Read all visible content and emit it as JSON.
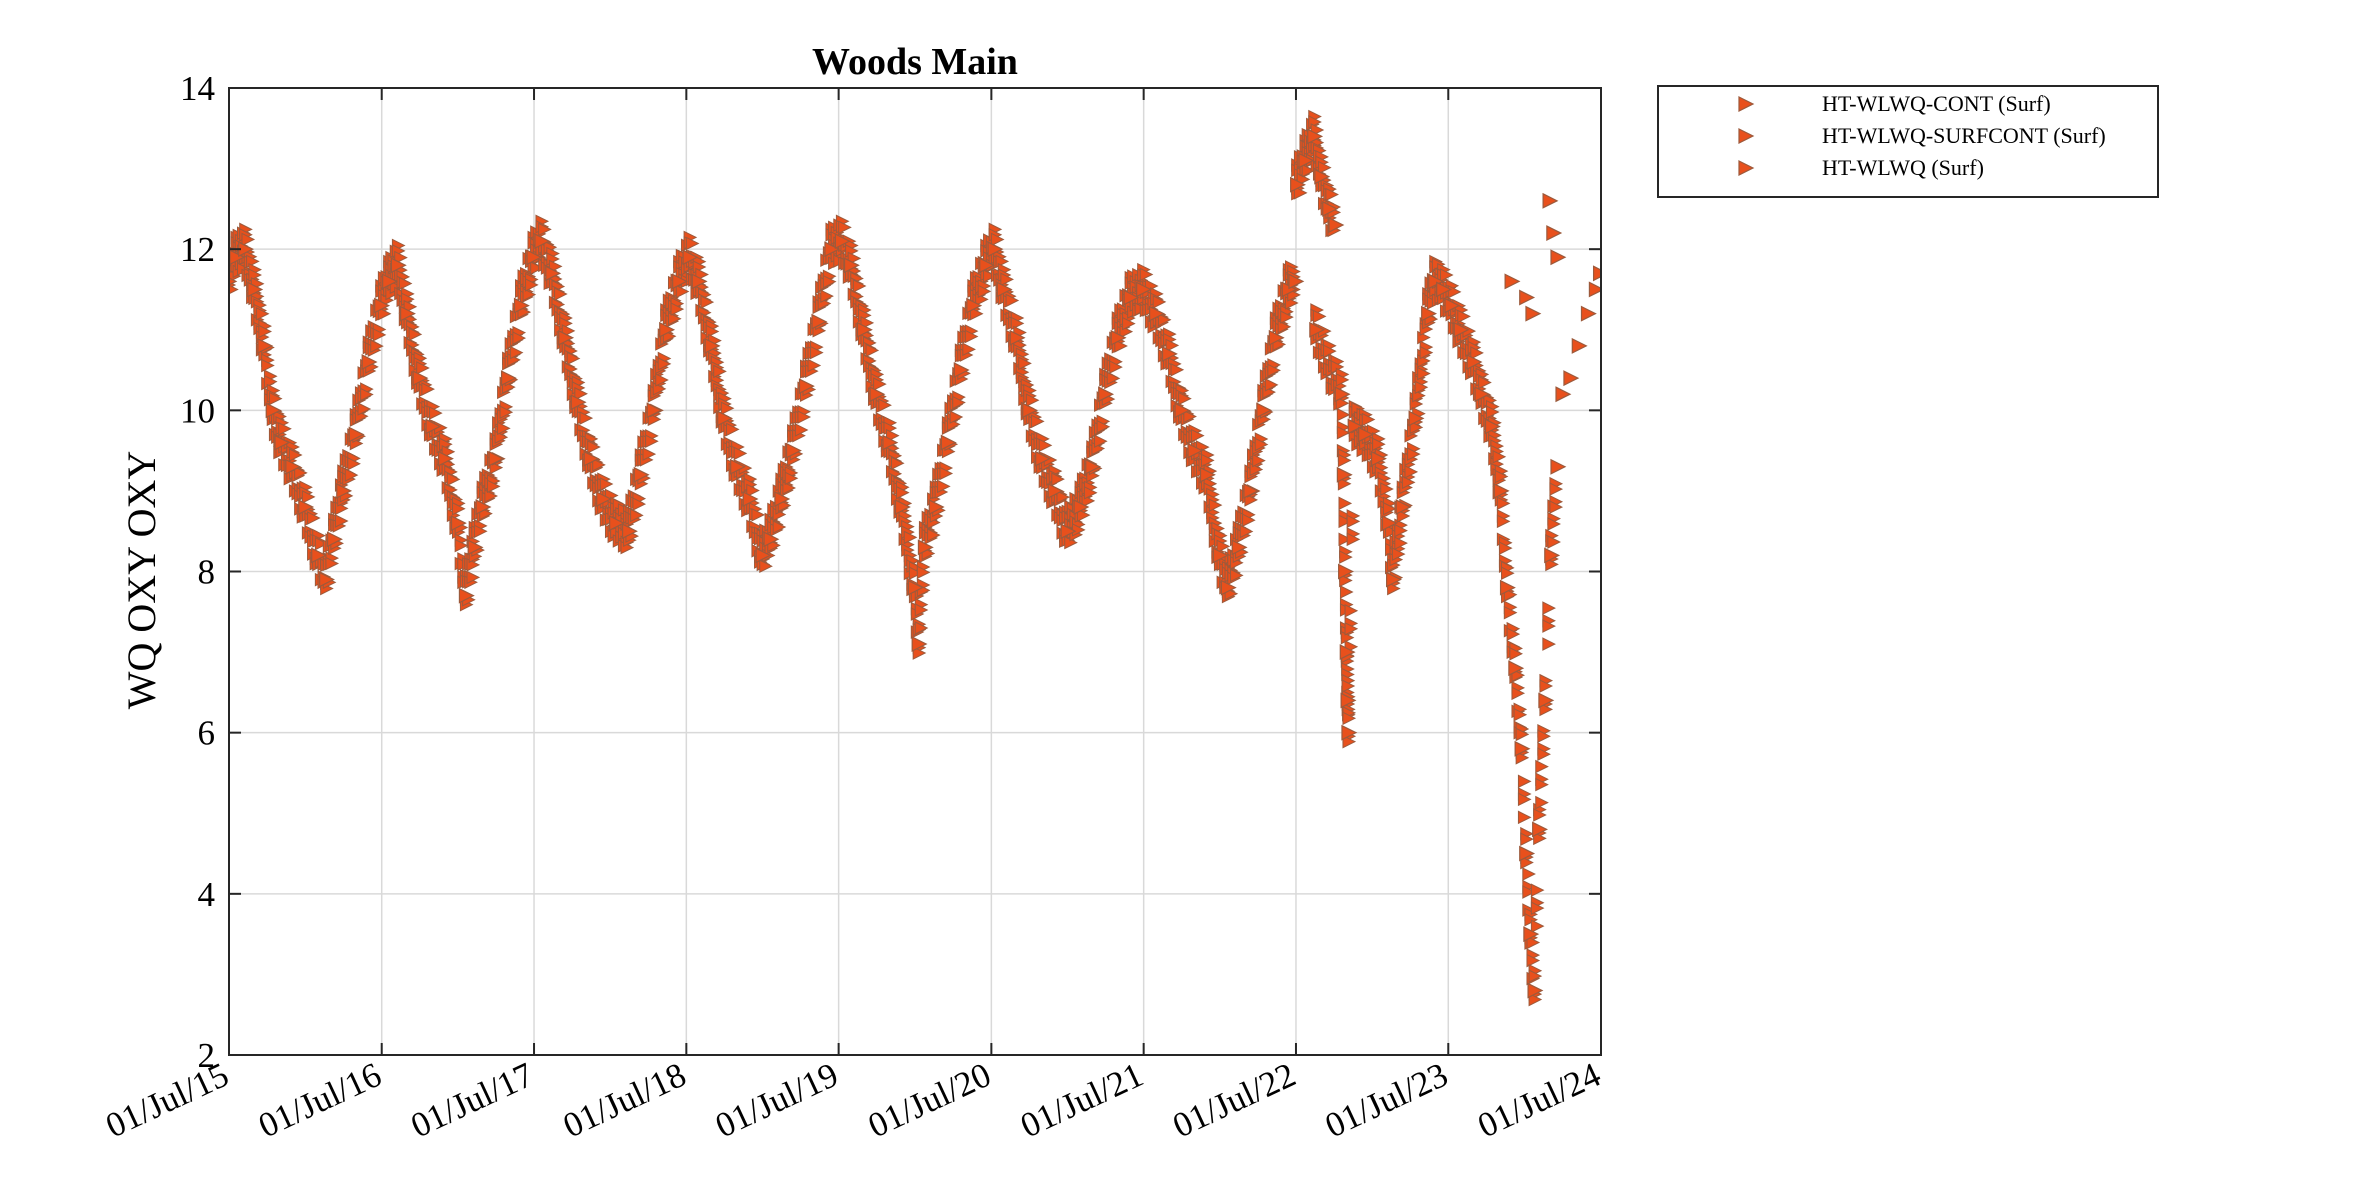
{
  "chart_data": {
    "type": "scatter",
    "title": "Woods Main",
    "xlabel": "",
    "ylabel": "WQ OXY OXY",
    "xlim": [
      "2015-07-01",
      "2024-07-01"
    ],
    "ylim": [
      2,
      14
    ],
    "y_ticks": [
      2,
      4,
      6,
      8,
      10,
      12,
      14
    ],
    "x_ticks": [
      {
        "date": "2015-07-01",
        "label": "01/Jul/15"
      },
      {
        "date": "2016-07-01",
        "label": "01/Jul/16"
      },
      {
        "date": "2017-07-01",
        "label": "01/Jul/17"
      },
      {
        "date": "2018-07-01",
        "label": "01/Jul/18"
      },
      {
        "date": "2019-07-01",
        "label": "01/Jul/19"
      },
      {
        "date": "2020-07-01",
        "label": "01/Jul/20"
      },
      {
        "date": "2021-07-01",
        "label": "01/Jul/21"
      },
      {
        "date": "2022-07-01",
        "label": "01/Jul/22"
      },
      {
        "date": "2023-07-01",
        "label": "01/Jul/23"
      },
      {
        "date": "2024-07-01",
        "label": "01/Jul/24"
      }
    ],
    "grid": true,
    "legend_position": "outside-top-right",
    "marker": "triangle-right",
    "marker_fill": "#e8501c",
    "marker_edge": "#9c5a3c",
    "series": [
      {
        "name": "HT-WLWQ-CONT (Surf)",
        "color": "#e8501c",
        "points": [
          [
            "2015-07-01",
            11.6
          ],
          [
            "2015-07-20",
            11.9
          ],
          [
            "2015-08-10",
            12.0
          ],
          [
            "2015-09-01",
            11.5
          ],
          [
            "2015-09-25",
            10.8
          ],
          [
            "2015-10-15",
            10.0
          ],
          [
            "2015-11-05",
            9.6
          ],
          [
            "2015-12-01",
            9.3
          ],
          [
            "2016-01-01",
            8.8
          ],
          [
            "2016-02-01",
            8.2
          ],
          [
            "2016-02-20",
            7.9
          ],
          [
            "2016-03-10",
            8.4
          ],
          [
            "2016-04-01",
            9.0
          ],
          [
            "2016-05-01",
            9.7
          ],
          [
            "2016-06-01",
            10.6
          ],
          [
            "2016-07-01",
            11.3
          ],
          [
            "2016-07-20",
            11.6
          ],
          [
            "2016-08-10",
            11.8
          ],
          [
            "2016-09-01",
            11.2
          ],
          [
            "2016-10-01",
            10.4
          ],
          [
            "2016-11-01",
            9.8
          ],
          [
            "2016-12-01",
            9.4
          ],
          [
            "2017-01-01",
            8.6
          ],
          [
            "2017-01-20",
            7.7
          ],
          [
            "2017-02-10",
            8.3
          ],
          [
            "2017-03-01",
            8.8
          ],
          [
            "2017-04-01",
            9.4
          ],
          [
            "2017-05-01",
            10.4
          ],
          [
            "2017-06-01",
            11.3
          ],
          [
            "2017-07-01",
            11.9
          ],
          [
            "2017-07-20",
            12.1
          ],
          [
            "2017-08-15",
            11.7
          ],
          [
            "2017-09-15",
            10.9
          ],
          [
            "2017-10-15",
            10.1
          ],
          [
            "2017-11-15",
            9.4
          ],
          [
            "2017-12-15",
            8.9
          ],
          [
            "2018-01-15",
            8.6
          ],
          [
            "2018-02-15",
            8.5
          ],
          [
            "2018-03-15",
            9.2
          ],
          [
            "2018-04-15",
            10.0
          ],
          [
            "2018-05-15",
            11.0
          ],
          [
            "2018-06-15",
            11.6
          ],
          [
            "2018-07-10",
            11.9
          ],
          [
            "2018-08-01",
            11.6
          ],
          [
            "2018-09-01",
            10.8
          ],
          [
            "2018-10-01",
            9.9
          ],
          [
            "2018-11-01",
            9.3
          ],
          [
            "2018-12-01",
            8.9
          ],
          [
            "2019-01-01",
            8.2
          ],
          [
            "2019-01-20",
            8.4
          ],
          [
            "2019-02-15",
            8.9
          ],
          [
            "2019-03-15",
            9.5
          ],
          [
            "2019-04-15",
            10.3
          ],
          [
            "2019-05-15",
            11.1
          ],
          [
            "2019-06-15",
            12.0
          ],
          [
            "2019-07-10",
            12.1
          ],
          [
            "2019-08-01",
            11.8
          ],
          [
            "2019-09-01",
            11.0
          ],
          [
            "2019-10-01",
            10.2
          ],
          [
            "2019-11-01",
            9.6
          ],
          [
            "2019-12-01",
            8.8
          ],
          [
            "2020-01-01",
            7.8
          ],
          [
            "2020-01-10",
            7.1
          ],
          [
            "2020-01-25",
            8.3
          ],
          [
            "2020-02-20",
            8.8
          ],
          [
            "2020-03-20",
            9.6
          ],
          [
            "2020-04-20",
            10.5
          ],
          [
            "2020-05-20",
            11.3
          ],
          [
            "2020-06-20",
            11.8
          ],
          [
            "2020-07-10",
            12.0
          ],
          [
            "2020-08-01",
            11.5
          ],
          [
            "2020-09-01",
            10.9
          ],
          [
            "2020-10-01",
            10.0
          ],
          [
            "2020-11-01",
            9.4
          ],
          [
            "2020-12-01",
            9.0
          ],
          [
            "2021-01-01",
            8.5
          ],
          [
            "2021-02-01",
            8.8
          ],
          [
            "2021-03-01",
            9.3
          ],
          [
            "2021-04-01",
            10.2
          ],
          [
            "2021-05-01",
            10.9
          ],
          [
            "2021-06-01",
            11.4
          ],
          [
            "2021-07-01",
            11.5
          ],
          [
            "2021-08-01",
            11.2
          ],
          [
            "2021-09-01",
            10.7
          ],
          [
            "2021-10-01",
            10.0
          ],
          [
            "2021-11-01",
            9.5
          ],
          [
            "2021-12-01",
            9.2
          ],
          [
            "2022-01-01",
            8.2
          ],
          [
            "2022-01-20",
            7.8
          ],
          [
            "2022-02-15",
            8.3
          ],
          [
            "2022-03-15",
            9.0
          ],
          [
            "2022-04-15",
            10.0
          ],
          [
            "2022-05-15",
            10.9
          ],
          [
            "2022-06-15",
            11.5
          ],
          [
            "2022-07-01",
            11.6
          ]
        ]
      },
      {
        "name": "HT-WLWQ-SURFCONT (Surf)",
        "color": "#e8501c",
        "points": [
          [
            "2022-07-05",
            12.8
          ],
          [
            "2022-07-25",
            13.1
          ],
          [
            "2022-08-15",
            13.4
          ],
          [
            "2022-09-01",
            12.9
          ],
          [
            "2022-09-20",
            12.5
          ],
          [
            "2022-10-05",
            12.3
          ],
          [
            "2022-08-20",
            11.0
          ],
          [
            "2022-10-20",
            10.2
          ],
          [
            "2022-10-25",
            9.2
          ],
          [
            "2022-10-28",
            8.0
          ],
          [
            "2022-11-01",
            7.0
          ],
          [
            "2022-11-03",
            6.4
          ],
          [
            "2022-11-05",
            6.0
          ],
          [
            "2022-11-20",
            9.8
          ],
          [
            "2022-12-15",
            9.7
          ],
          [
            "2023-01-15",
            9.4
          ],
          [
            "2023-02-10",
            8.6
          ],
          [
            "2023-02-20",
            7.9
          ],
          [
            "2023-03-15",
            8.8
          ],
          [
            "2023-04-15",
            9.9
          ],
          [
            "2023-05-15",
            11.2
          ],
          [
            "2023-06-01",
            11.6
          ],
          [
            "2023-06-20",
            11.5
          ],
          [
            "2023-07-10",
            11.3
          ],
          [
            "2023-08-01",
            11.0
          ],
          [
            "2023-09-01",
            10.6
          ],
          [
            "2023-09-20",
            10.2
          ],
          [
            "2023-10-15",
            9.8
          ],
          [
            "2023-11-05",
            9.0
          ],
          [
            "2023-11-20",
            7.8
          ],
          [
            "2023-12-10",
            6.8
          ],
          [
            "2023-12-25",
            5.8
          ],
          [
            "2024-01-05",
            4.5
          ],
          [
            "2024-01-15",
            3.5
          ],
          [
            "2024-01-25",
            2.8
          ],
          [
            "2024-02-05",
            4.8
          ],
          [
            "2024-02-20",
            6.4
          ],
          [
            "2024-03-05",
            8.2
          ],
          [
            "2024-03-20",
            9.3
          ]
        ]
      },
      {
        "name": "HT-WLWQ (Surf)",
        "color": "#e8501c",
        "points": [
          [
            "2024-03-01",
            12.6
          ],
          [
            "2024-03-10",
            12.2
          ],
          [
            "2024-03-20",
            11.9
          ],
          [
            "2024-04-01",
            10.2
          ],
          [
            "2024-04-20",
            10.4
          ],
          [
            "2024-05-10",
            10.8
          ],
          [
            "2024-06-01",
            11.2
          ],
          [
            "2024-06-20",
            11.5
          ],
          [
            "2024-06-30",
            11.7
          ],
          [
            "2023-12-01",
            11.6
          ],
          [
            "2024-01-05",
            11.4
          ],
          [
            "2024-01-20",
            11.2
          ]
        ]
      }
    ]
  }
}
